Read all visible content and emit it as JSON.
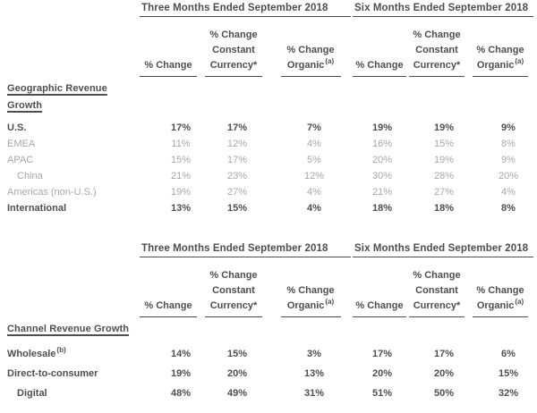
{
  "colors": {
    "text_dark": "#4e4e4e",
    "text_light": "#a7a7a7"
  },
  "period_headers": {
    "three_months": "Three Months Ended September 2018",
    "six_months": "Six Months Ended September 2018"
  },
  "column_headers": {
    "pct_change": "% Change",
    "constant_line1": "% Change",
    "constant_line2": "Constant",
    "constant_line3": "Currency*",
    "organic_line1": "% Change",
    "organic_line2": "Organic",
    "organic_sup": "(a)"
  },
  "geo_table": {
    "section_label": "Geographic Revenue Growth",
    "rows": [
      {
        "label": "U.S.",
        "values": [
          "17%",
          "17%",
          "7%",
          "19%",
          "19%",
          "9%"
        ]
      },
      {
        "label": "EMEA",
        "values": [
          "11%",
          "12%",
          "4%",
          "16%",
          "15%",
          "8%"
        ]
      },
      {
        "label": "APAC",
        "values": [
          "15%",
          "17%",
          "5%",
          "20%",
          "19%",
          "9%"
        ]
      },
      {
        "label": "China",
        "values": [
          "21%",
          "23%",
          "12%",
          "30%",
          "28%",
          "20%"
        ]
      },
      {
        "label": "Americas (non-U.S.)",
        "values": [
          "19%",
          "27%",
          "4%",
          "21%",
          "27%",
          "4%"
        ]
      },
      {
        "label": "International",
        "values": [
          "13%",
          "15%",
          "4%",
          "18%",
          "18%",
          "8%"
        ]
      }
    ]
  },
  "channel_table": {
    "section_label": "Channel Revenue Growth",
    "rows": [
      {
        "label": "Wholesale",
        "sup": "(b)",
        "values": [
          "14%",
          "15%",
          "3%",
          "17%",
          "17%",
          "6%"
        ]
      },
      {
        "label": "Direct-to-consumer",
        "values": [
          "19%",
          "20%",
          "13%",
          "20%",
          "20%",
          "15%"
        ]
      },
      {
        "label": "Digital",
        "values": [
          "48%",
          "49%",
          "31%",
          "51%",
          "50%",
          "32%"
        ]
      }
    ]
  }
}
